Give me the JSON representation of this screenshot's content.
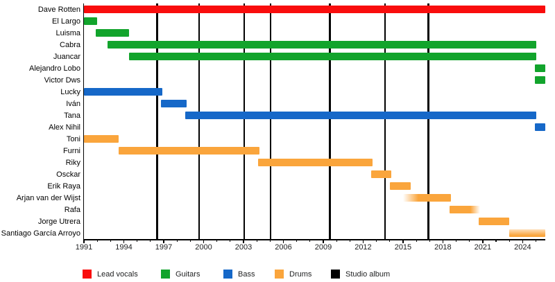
{
  "chart_data": {
    "type": "timeline",
    "description": "Band members timeline (Gantt chart) with studio album markers",
    "x_axis": {
      "start": 1991,
      "end": 2025.7,
      "major_tick_years": [
        1991,
        1994,
        1997,
        2000,
        2003,
        2006,
        2009,
        2012,
        2015,
        2018,
        2021,
        2024
      ],
      "minor_tick_interval_years": 1,
      "minor_tick_start": 1991,
      "minor_tick_end": 2025
    },
    "role_colors": {
      "vocals": "#f90d0d",
      "guitars": "#12a42c",
      "bass": "#1668c8",
      "drums": "#faa53c",
      "album": "#000000"
    },
    "members": [
      {
        "name": "Dave Rotten",
        "role": "vocals",
        "start": 1991.0,
        "end": 2025.7
      },
      {
        "name": "El Largo",
        "role": "guitars",
        "start": 1991.0,
        "end": 1992.0
      },
      {
        "name": "Luisma",
        "role": "guitars",
        "start": 1991.9,
        "end": 1994.4
      },
      {
        "name": "Cabra",
        "role": "guitars",
        "start": 1992.8,
        "end": 2025.0
      },
      {
        "name": "Juancar",
        "role": "guitars",
        "start": 1994.4,
        "end": 2025.0
      },
      {
        "name": "Alejandro Lobo",
        "role": "guitars",
        "start": 2024.9,
        "end": 2025.7
      },
      {
        "name": "Victor Dws",
        "role": "guitars",
        "start": 2024.9,
        "end": 2025.7
      },
      {
        "name": "Lucky",
        "role": "bass",
        "start": 1991.0,
        "end": 1996.9
      },
      {
        "name": "Iván",
        "role": "bass",
        "start": 1996.8,
        "end": 1998.7
      },
      {
        "name": "Tana",
        "role": "bass",
        "start": 1998.6,
        "end": 2025.0
      },
      {
        "name": "Alex Nihil",
        "role": "bass",
        "start": 2024.9,
        "end": 2025.7
      },
      {
        "name": "Toni",
        "role": "drums",
        "start": 1991.0,
        "end": 1993.6
      },
      {
        "name": "Furni",
        "role": "drums",
        "start": 1993.6,
        "end": 2004.2
      },
      {
        "name": "Riky",
        "role": "drums",
        "start": 2004.1,
        "end": 2012.7
      },
      {
        "name": "Osckar",
        "role": "drums",
        "start": 2012.6,
        "end": 2014.1
      },
      {
        "name": "Erik Raya",
        "role": "drums",
        "start": 2014.0,
        "end": 2015.6
      },
      {
        "name": "Arjan van der Wijst",
        "role": "drums",
        "start": 2015.0,
        "end": 2018.6,
        "fade": "left"
      },
      {
        "name": "Rafa",
        "role": "drums",
        "start": 2018.5,
        "end": 2020.8,
        "fade": "right"
      },
      {
        "name": "Jorge Utrera",
        "role": "drums",
        "start": 2020.7,
        "end": 2023.0
      },
      {
        "name": "Santiago García Arroyo",
        "role": "drums",
        "start": 2023.0,
        "end": 2025.7,
        "fade": "top"
      }
    ],
    "studio_album_years": [
      1996.5,
      1999.65,
      2003.05,
      2005.05,
      2009.5,
      2013.65,
      2016.9
    ],
    "legend": [
      {
        "label": "Lead vocals",
        "color": "#f90d0d"
      },
      {
        "label": "Guitars",
        "color": "#12a42c"
      },
      {
        "label": "Bass",
        "color": "#1668c8"
      },
      {
        "label": "Drums",
        "color": "#faa53c"
      },
      {
        "label": "Studio album",
        "color": "#000000"
      }
    ]
  }
}
